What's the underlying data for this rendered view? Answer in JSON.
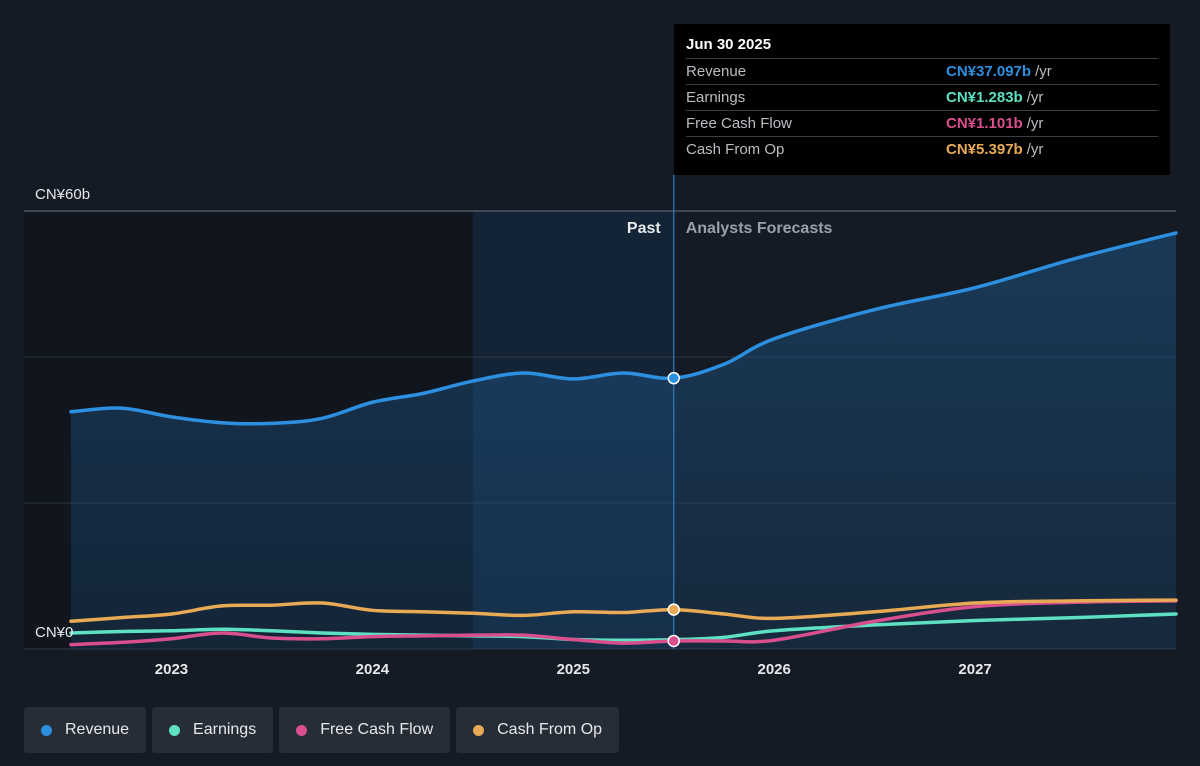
{
  "tooltip": {
    "date": "Jun 30 2025",
    "rows": [
      {
        "label": "Revenue",
        "value": "CN¥37.097b",
        "unit": "/yr",
        "color": "#2d8fe0"
      },
      {
        "label": "Earnings",
        "value": "CN¥1.283b",
        "unit": "/yr",
        "color": "#5ee0c3"
      },
      {
        "label": "Free Cash Flow",
        "value": "CN¥1.101b",
        "unit": "/yr",
        "color": "#d94f8e"
      },
      {
        "label": "Cash From Op",
        "value": "CN¥5.397b",
        "unit": "/yr",
        "color": "#e8aa55"
      }
    ]
  },
  "labels": {
    "past": "Past",
    "forecast": "Analysts Forecasts"
  },
  "chart_data": {
    "type": "line",
    "ylim": [
      0,
      60
    ],
    "y_unit": "CN¥ billions",
    "y_tick_labels": [
      {
        "value": 60,
        "label": "CN¥60b"
      },
      {
        "value": 0,
        "label": "CN¥0"
      }
    ],
    "gridlines": [
      60,
      40,
      20,
      0
    ],
    "x_range": [
      2022.5,
      2028.0
    ],
    "x_ticks": [
      2023,
      2024,
      2025,
      2026,
      2027
    ],
    "highlight_x": 2025.5,
    "past_shade_start": 2024.5,
    "series": [
      {
        "name": "Revenue",
        "color": "#2d8fe0",
        "fill": true,
        "points": [
          [
            2022.5,
            32.5
          ],
          [
            2022.75,
            33.0
          ],
          [
            2023.0,
            31.8
          ],
          [
            2023.25,
            31.0
          ],
          [
            2023.5,
            30.9
          ],
          [
            2023.75,
            31.6
          ],
          [
            2024.0,
            33.8
          ],
          [
            2024.25,
            35.0
          ],
          [
            2024.5,
            36.7
          ],
          [
            2024.75,
            37.8
          ],
          [
            2025.0,
            37.0
          ],
          [
            2025.25,
            37.8
          ],
          [
            2025.5,
            37.1
          ],
          [
            2025.75,
            39.0
          ],
          [
            2026.0,
            42.5
          ],
          [
            2026.5,
            46.5
          ],
          [
            2027.0,
            49.5
          ],
          [
            2027.5,
            53.5
          ],
          [
            2028.0,
            57.0
          ]
        ]
      },
      {
        "name": "Earnings",
        "color": "#5ee0c3",
        "fill": false,
        "points": [
          [
            2022.5,
            2.2
          ],
          [
            2022.75,
            2.4
          ],
          [
            2023.0,
            2.5
          ],
          [
            2023.25,
            2.7
          ],
          [
            2023.5,
            2.5
          ],
          [
            2023.75,
            2.2
          ],
          [
            2024.0,
            2.0
          ],
          [
            2024.25,
            1.9
          ],
          [
            2024.5,
            1.8
          ],
          [
            2024.75,
            1.7
          ],
          [
            2025.0,
            1.3
          ],
          [
            2025.25,
            1.2
          ],
          [
            2025.5,
            1.28
          ],
          [
            2025.75,
            1.6
          ],
          [
            2026.0,
            2.5
          ],
          [
            2026.5,
            3.3
          ],
          [
            2027.0,
            3.9
          ],
          [
            2027.5,
            4.3
          ],
          [
            2028.0,
            4.8
          ]
        ]
      },
      {
        "name": "Free Cash Flow",
        "color": "#d94f8e",
        "fill": false,
        "points": [
          [
            2022.5,
            0.6
          ],
          [
            2022.75,
            0.9
          ],
          [
            2023.0,
            1.4
          ],
          [
            2023.25,
            2.2
          ],
          [
            2023.5,
            1.5
          ],
          [
            2023.75,
            1.4
          ],
          [
            2024.0,
            1.7
          ],
          [
            2024.25,
            1.8
          ],
          [
            2024.5,
            1.9
          ],
          [
            2024.75,
            1.9
          ],
          [
            2025.0,
            1.3
          ],
          [
            2025.25,
            0.8
          ],
          [
            2025.5,
            1.1
          ],
          [
            2025.75,
            1.1
          ],
          [
            2026.0,
            1.2
          ],
          [
            2026.5,
            3.8
          ],
          [
            2027.0,
            5.8
          ],
          [
            2027.5,
            6.4
          ],
          [
            2028.0,
            6.6
          ]
        ]
      },
      {
        "name": "Cash From Op",
        "color": "#e8aa55",
        "fill": false,
        "points": [
          [
            2022.5,
            3.8
          ],
          [
            2022.75,
            4.3
          ],
          [
            2023.0,
            4.8
          ],
          [
            2023.25,
            5.9
          ],
          [
            2023.5,
            6.0
          ],
          [
            2023.75,
            6.3
          ],
          [
            2024.0,
            5.3
          ],
          [
            2024.25,
            5.1
          ],
          [
            2024.5,
            4.9
          ],
          [
            2024.75,
            4.6
          ],
          [
            2025.0,
            5.1
          ],
          [
            2025.25,
            5.0
          ],
          [
            2025.5,
            5.4
          ],
          [
            2025.75,
            4.8
          ],
          [
            2026.0,
            4.2
          ],
          [
            2026.5,
            5.1
          ],
          [
            2027.0,
            6.3
          ],
          [
            2027.5,
            6.6
          ],
          [
            2028.0,
            6.7
          ]
        ]
      }
    ]
  },
  "legend": [
    {
      "label": "Revenue",
      "color": "#2d8fe0"
    },
    {
      "label": "Earnings",
      "color": "#5ee0c3"
    },
    {
      "label": "Free Cash Flow",
      "color": "#d94f8e"
    },
    {
      "label": "Cash From Op",
      "color": "#e8aa55"
    }
  ]
}
